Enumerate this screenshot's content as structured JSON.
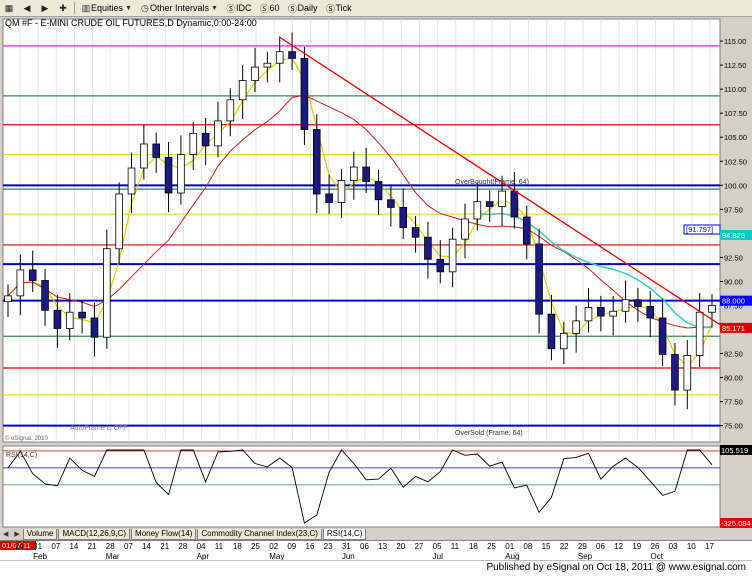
{
  "toolbar": {
    "items": [
      {
        "label": "Equities",
        "icon": "building-icon"
      },
      {
        "label": "Other Intervals",
        "icon": "clock-icon"
      },
      {
        "label": "IDC",
        "icon": "s-circle-icon"
      },
      {
        "label": "60",
        "icon": "s-circle-icon"
      },
      {
        "label": "Daily",
        "icon": "s-circle-icon"
      },
      {
        "label": "Tick",
        "icon": "s-circle-icon"
      }
    ]
  },
  "chart_header": {
    "symbol": "QM #F",
    "title": "E-MINI CRUDE OIL FUTURES,D",
    "mode": "Dynamic",
    "session": "0:00-24:00"
  },
  "chart_data": [
    {
      "type": "candlestick",
      "title": "QM #F - E-MINI CRUDE OIL FUTURES,D",
      "ylim": [
        73.3,
        117.3
      ],
      "y_ticks": [
        75.0,
        77.5,
        80.0,
        82.5,
        85.0,
        87.5,
        90.0,
        92.5,
        95.0,
        97.5,
        100.0,
        102.5,
        105.0,
        107.5,
        110.0,
        112.5,
        115.0
      ],
      "x_month_labels": [
        "Feb",
        "Mar",
        "Apr",
        "May",
        "Jun",
        "Jul",
        "Aug",
        "Sep",
        "Oct"
      ],
      "x_day_labels": [
        "24",
        "31",
        "07",
        "14",
        "21",
        "28",
        "07",
        "14",
        "21",
        "28",
        "04",
        "11",
        "18",
        "25",
        "02",
        "09",
        "16",
        "23",
        "31",
        "06",
        "13",
        "20",
        "27",
        "05",
        "11",
        "18",
        "25",
        "01",
        "08",
        "15",
        "22",
        "29",
        "06",
        "12",
        "19",
        "26",
        "03",
        "10",
        "17"
      ],
      "horizontal_levels": [
        {
          "value": 114.5,
          "color": "#ff00ff"
        },
        {
          "value": 109.3,
          "color": "#2e8b57"
        },
        {
          "value": 106.3,
          "color": "#dd0000"
        },
        {
          "value": 103.2,
          "color": "#e8e800"
        },
        {
          "value": 100.0,
          "color": "#0000cc"
        },
        {
          "value": 99.6,
          "color": "#2e8b57"
        },
        {
          "value": 97.0,
          "color": "#e8e800"
        },
        {
          "value": 93.8,
          "color": "#dd0000"
        },
        {
          "value": 91.8,
          "color": "#0000cc"
        },
        {
          "value": 88.0,
          "color": "#0000cc"
        },
        {
          "value": 84.3,
          "color": "#2e8b57"
        },
        {
          "value": 81.0,
          "color": "#dd0000"
        },
        {
          "value": 78.2,
          "color": "#e8e800"
        },
        {
          "value": 75.0,
          "color": "#0000cc"
        }
      ],
      "price_markers": [
        {
          "label": "94.828",
          "value": 94.828,
          "color": "#00cccc"
        },
        {
          "label": "88.000",
          "value": 88.0,
          "color": "#0000ff"
        },
        {
          "label": "85.171",
          "value": 85.171,
          "color": "#dd0000"
        }
      ],
      "box_label": {
        "text": "[91.797]",
        "value": 91.797
      },
      "annotations": [
        {
          "text": "OverBought(Frame: 64)"
        },
        {
          "text": "OverSold (Frame: 64)"
        },
        {
          "text": "AutoFrame is OFF"
        },
        {
          "text": "© eSignal, 2010"
        }
      ],
      "series": [
        {
          "name": "Close",
          "values": [
            88.5,
            91.2,
            90.1,
            87.0,
            85.1,
            86.8,
            86.2,
            84.2,
            93.4,
            99.1,
            101.8,
            104.3,
            102.9,
            99.2,
            103.2,
            105.4,
            104.1,
            106.7,
            108.9,
            110.9,
            112.3,
            112.7,
            113.9,
            113.2,
            105.8,
            99.1,
            98.2,
            100.5,
            101.9,
            100.4,
            98.5,
            97.7,
            95.6,
            94.6,
            92.3,
            91.0,
            94.4,
            96.5,
            98.3,
            97.8,
            99.4,
            96.7,
            93.9,
            86.6,
            83.0,
            84.6,
            85.9,
            87.3,
            86.4,
            86.9,
            88.1,
            87.4,
            86.2,
            82.4,
            78.7,
            82.3,
            86.8,
            87.5
          ]
        }
      ]
    },
    {
      "type": "line",
      "title": "RSI(14,C)",
      "y_markers": [
        {
          "label": "105.519",
          "value": 105.519
        },
        {
          "label": "-325.084",
          "value": -325.084
        }
      ]
    }
  ],
  "tabs": [
    {
      "label": "Volume"
    },
    {
      "label": "MACD(12,26,9,C)"
    },
    {
      "label": "Money Flow(14)"
    },
    {
      "label": "Commodity Channel Index(23,C)"
    },
    {
      "label": "RSI(14,C)"
    }
  ],
  "date_box": "01/07/11",
  "footer": {
    "text": "Published by eSignal on Oct 18, 2011 @ www.esignal.com"
  }
}
